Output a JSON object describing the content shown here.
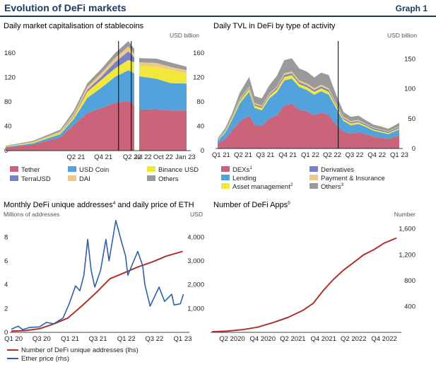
{
  "header": {
    "title": "Evolution of DeFi markets",
    "graph_label": "Graph 1"
  },
  "colors": {
    "tether": "#c9647a",
    "usd_coin": "#52a3dc",
    "binance_usd": "#f2e83c",
    "terrausd": "#7a7fc8",
    "dai": "#eec98c",
    "others": "#9a9a9a",
    "dexs": "#c9647a",
    "lending": "#52a3dc",
    "asset_management": "#f2e83c",
    "derivatives": "#7a7fc8",
    "payment_insurance": "#eec98c",
    "red_line": "#b22f2f",
    "blue_line": "#2f5fa8"
  },
  "chart_data": [
    {
      "id": "stablecoins",
      "type": "area",
      "title": "Daily market capitalisation of stablecoins",
      "unit_label": "USD  billion",
      "ylim": [
        0,
        180
      ],
      "yticks": [
        0,
        40,
        80,
        120,
        160
      ],
      "segments": [
        {
          "x": [
            "2020-01-01",
            "2020-07-01",
            "2021-01-01",
            "2021-04-01",
            "2021-07-01",
            "2021-10-01",
            "2022-01-01",
            "2022-04-01",
            "2022-05-10"
          ]
        },
        {
          "x": [
            "2022-06-15",
            "2022-09-01",
            "2022-11-01",
            "2023-01-15"
          ]
        }
      ],
      "xticks": [
        {
          "label": "Q2 21",
          "segment": 0,
          "x": "2021-04-15"
        },
        {
          "label": "Q4 21",
          "segment": 0,
          "x": "2021-10-15"
        },
        {
          "label": "Q2 22",
          "segment": 0,
          "x": "2022-04-25"
        },
        {
          "label": "Jul 22",
          "segment": 1,
          "x": "2022-07-01"
        },
        {
          "label": "Oct 22",
          "segment": 1,
          "x": "2022-10-01"
        },
        {
          "label": "Jan 23",
          "segment": 1,
          "x": "2023-01-10"
        }
      ],
      "event_lines": [
        {
          "segment": 0,
          "x": "2022-01-25"
        },
        {
          "segment": 0,
          "x": "2022-04-20"
        }
      ],
      "series": [
        {
          "name": "Tether",
          "color": "tether",
          "values": [
            [
              5,
              10,
              22,
              42,
              62,
              70,
              78,
              82,
              75
            ],
            [
              67,
              68,
              66,
              66
            ]
          ]
        },
        {
          "name": "USD Coin",
          "color": "usd_coin",
          "values": [
            [
              1,
              2,
              5,
              10,
              25,
              33,
              43,
              50,
              52
            ],
            [
              55,
              50,
              45,
              44
            ]
          ]
        },
        {
          "name": "Binance USD",
          "color": "binance_usd",
          "values": [
            [
              0.5,
              1,
              2,
              4,
              10,
              13,
              14,
              17,
              18
            ],
            [
              17,
              20,
              22,
              17
            ]
          ]
        },
        {
          "name": "TerraUSD",
          "color": "terrausd",
          "values": [
            [
              0,
              0,
              0.5,
              2,
              3,
              5,
              10,
              14,
              8
            ],
            [
              0,
              0,
              0,
              0
            ]
          ]
        },
        {
          "name": "DAI",
          "color": "dai",
          "values": [
            [
              0.5,
              1,
              2,
              3,
              5,
              6,
              7,
              8,
              6
            ],
            [
              6,
              6,
              5,
              5
            ]
          ]
        },
        {
          "name": "Others",
          "color": "others",
          "values": [
            [
              1,
              2,
              3,
              5,
              6,
              7,
              8,
              9,
              8
            ],
            [
              7,
              7,
              7,
              6
            ]
          ]
        }
      ],
      "legend": [
        {
          "label": "Tether",
          "color": "tether"
        },
        {
          "label": "USD Coin",
          "color": "usd_coin"
        },
        {
          "label": "Binance USD",
          "color": "binance_usd"
        },
        {
          "label": "TerraUSD",
          "color": "terrausd"
        },
        {
          "label": "DAI",
          "color": "dai"
        },
        {
          "label": "Others",
          "color": "others"
        }
      ]
    },
    {
      "id": "tvl",
      "type": "area",
      "title": "Daily TVL in DeFi by type of activity",
      "unit_label": "USD billion",
      "ylim": [
        0,
        180
      ],
      "yticks": [
        0,
        50,
        100,
        150
      ],
      "x": [
        "2021-01-01",
        "2021-02-01",
        "2021-03-01",
        "2021-04-01",
        "2021-05-10",
        "2021-06-01",
        "2021-07-01",
        "2021-08-01",
        "2021-09-01",
        "2021-10-01",
        "2021-11-01",
        "2021-12-01",
        "2022-01-01",
        "2022-02-01",
        "2022-03-01",
        "2022-04-01",
        "2022-05-01",
        "2022-06-01",
        "2022-07-01",
        "2022-08-01",
        "2022-09-01",
        "2022-10-01",
        "2022-11-01",
        "2022-12-01",
        "2023-01-15"
      ],
      "xticks": [
        {
          "label": "Q1 21",
          "x": "2021-01-15"
        },
        {
          "label": "Q2 21",
          "x": "2021-04-15"
        },
        {
          "label": "Q3 21",
          "x": "2021-07-15"
        },
        {
          "label": "Q4 21",
          "x": "2021-10-15"
        },
        {
          "label": "Q1 22",
          "x": "2022-01-15"
        },
        {
          "label": "Q2 22",
          "x": "2022-04-15"
        },
        {
          "label": "Q3 22",
          "x": "2022-07-15"
        },
        {
          "label": "Q4 22",
          "x": "2022-10-15"
        },
        {
          "label": "Q1 23",
          "x": "2023-01-15"
        }
      ],
      "event_lines": [
        {
          "x": "2022-05-10"
        }
      ],
      "series": [
        {
          "name": "DEXs",
          "color": "dexs",
          "values": [
            8,
            16,
            30,
            45,
            55,
            40,
            38,
            50,
            56,
            72,
            75,
            65,
            62,
            56,
            60,
            56,
            40,
            28,
            25,
            27,
            24,
            20,
            18,
            16,
            22
          ]
        },
        {
          "name": "Lending",
          "color": "lending",
          "values": [
            5,
            10,
            18,
            30,
            40,
            28,
            26,
            34,
            38,
            42,
            42,
            38,
            36,
            34,
            36,
            34,
            28,
            18,
            14,
            14,
            12,
            10,
            9,
            8,
            10
          ]
        },
        {
          "name": "Asset management",
          "color": "asset_management",
          "values": [
            1,
            2,
            3,
            4,
            5,
            4,
            4,
            4,
            5,
            6,
            6,
            5,
            5,
            5,
            5,
            5,
            4,
            3,
            3,
            3,
            2,
            2,
            2,
            2,
            2
          ]
        },
        {
          "name": "Derivatives",
          "color": "derivatives",
          "values": [
            0.5,
            1,
            1,
            2,
            2,
            2,
            2,
            2,
            3,
            3,
            3,
            3,
            3,
            3,
            3,
            3,
            2,
            2,
            2,
            2,
            2,
            2,
            2,
            2,
            2
          ]
        },
        {
          "name": "Payment & Insurance",
          "color": "payment_insurance",
          "values": [
            0.5,
            1,
            1,
            2,
            2,
            2,
            2,
            2,
            2,
            3,
            3,
            3,
            3,
            3,
            3,
            3,
            2,
            2,
            2,
            2,
            1,
            1,
            1,
            1,
            1
          ]
        },
        {
          "name": "Others",
          "color": "others",
          "values": [
            2,
            4,
            6,
            10,
            16,
            12,
            12,
            14,
            18,
            22,
            22,
            20,
            20,
            18,
            20,
            22,
            15,
            8,
            7,
            7,
            6,
            5,
            5,
            4,
            6
          ]
        }
      ],
      "legend": [
        {
          "label": "DEXs",
          "sup": "1",
          "color": "dexs"
        },
        {
          "label": "Derivatives",
          "sup": "",
          "color": "derivatives"
        },
        {
          "label": "Lending",
          "sup": "",
          "color": "lending"
        },
        {
          "label": "Payment & Insurance",
          "sup": "",
          "color": "payment_insurance"
        },
        {
          "label": "Asset management",
          "sup": "2",
          "color": "asset_management"
        },
        {
          "label": "Others",
          "sup": "3",
          "color": "others"
        }
      ]
    },
    {
      "id": "addresses",
      "type": "line",
      "title": "Monthly DeFi unique addresses",
      "title_sup": "4",
      "title_suffix": " and daily price of ETH",
      "ylabel_left": "Millions of addresses",
      "ylabel_right": "USD",
      "ylim_left": [
        0,
        9.5
      ],
      "ylim_right": [
        0,
        4750
      ],
      "yticks_left": [
        0,
        2,
        4,
        6,
        8
      ],
      "yticks_right": [
        {
          "v": 1000,
          "label": "1,000"
        },
        {
          "v": 2000,
          "label": "2,000"
        },
        {
          "v": 3000,
          "label": "3,000"
        },
        {
          "v": 4000,
          "label": "4,000"
        }
      ],
      "xticks": [
        {
          "label": "Q1 20",
          "x": "2020-01-15"
        },
        {
          "label": "Q3 20",
          "x": "2020-07-15"
        },
        {
          "label": "Q1 21",
          "x": "2021-01-15"
        },
        {
          "label": "Q3 21",
          "x": "2021-07-15"
        },
        {
          "label": "Q1 22",
          "x": "2022-01-15"
        },
        {
          "label": "Q3 22",
          "x": "2022-07-15"
        },
        {
          "label": "Q1 23",
          "x": "2023-01-15"
        }
      ],
      "series": [
        {
          "name": "Number of DeFi unique addresses (lhs)",
          "axis": "left",
          "color": "red_line",
          "x": [
            "2020-01-01",
            "2020-04-01",
            "2020-07-01",
            "2020-10-01",
            "2021-01-01",
            "2021-04-01",
            "2021-07-01",
            "2021-10-01",
            "2022-01-01",
            "2022-04-01",
            "2022-07-01",
            "2022-10-01",
            "2023-01-15"
          ],
          "values": [
            0.1,
            0.15,
            0.3,
            0.7,
            1.2,
            2.2,
            3.3,
            4.5,
            5.0,
            5.5,
            5.9,
            6.4,
            6.8
          ]
        },
        {
          "name": "Ether price (rhs)",
          "axis": "right",
          "color": "blue_line",
          "x": [
            "2020-01-01",
            "2020-02-15",
            "2020-03-15",
            "2020-05-01",
            "2020-07-01",
            "2020-08-15",
            "2020-10-01",
            "2020-12-01",
            "2021-01-10",
            "2021-02-20",
            "2021-03-20",
            "2021-04-15",
            "2021-05-10",
            "2021-06-01",
            "2021-06-25",
            "2021-08-01",
            "2021-09-05",
            "2021-09-25",
            "2021-11-08",
            "2021-12-15",
            "2022-01-10",
            "2022-01-25",
            "2022-03-30",
            "2022-05-01",
            "2022-05-15",
            "2022-06-18",
            "2022-08-15",
            "2022-09-20",
            "2022-11-05",
            "2022-11-20",
            "2022-12-31",
            "2023-01-20"
          ],
          "values": [
            130,
            260,
            110,
            210,
            230,
            420,
            360,
            600,
            1200,
            1950,
            1750,
            2400,
            3900,
            2600,
            1900,
            2600,
            3900,
            3000,
            4700,
            3800,
            3200,
            2400,
            3400,
            2800,
            2000,
            1100,
            1900,
            1300,
            1600,
            1150,
            1200,
            1600
          ]
        }
      ],
      "legend": [
        {
          "label": "Number of DeFi unique addresses (lhs)",
          "color": "red_line"
        },
        {
          "label": "Ether price (rhs)",
          "color": "blue_line"
        }
      ]
    },
    {
      "id": "apps",
      "type": "line",
      "title": "Number of DeFi Apps",
      "title_sup": "5",
      "ylabel_right": "Number",
      "ylim": [
        0,
        1750
      ],
      "yticks_right": [
        {
          "v": 400,
          "label": "400"
        },
        {
          "v": 800,
          "label": "800"
        },
        {
          "v": 1200,
          "label": "1,200"
        },
        {
          "v": 1600,
          "label": "1,600"
        }
      ],
      "xticks": [
        {
          "label": "Q2 2020",
          "x": "2020-05-01"
        },
        {
          "label": "Q4 2020",
          "x": "2020-11-01"
        },
        {
          "label": "Q2 2021",
          "x": "2021-05-01"
        },
        {
          "label": "Q4 2021",
          "x": "2021-11-01"
        },
        {
          "label": "Q2 2022",
          "x": "2022-05-01"
        },
        {
          "label": "Q4 2022",
          "x": "2022-11-01"
        }
      ],
      "series": [
        {
          "name": "Number of DeFi Apps",
          "color": "red_line",
          "x": [
            "2020-01-01",
            "2020-04-01",
            "2020-07-01",
            "2020-10-01",
            "2021-01-01",
            "2021-04-01",
            "2021-07-01",
            "2021-09-01",
            "2021-11-01",
            "2022-01-01",
            "2022-03-01",
            "2022-05-01",
            "2022-07-01",
            "2022-09-01",
            "2022-11-01",
            "2023-01-15"
          ],
          "values": [
            10,
            20,
            40,
            80,
            150,
            230,
            340,
            450,
            650,
            820,
            960,
            1080,
            1200,
            1280,
            1380,
            1460
          ]
        }
      ]
    }
  ]
}
